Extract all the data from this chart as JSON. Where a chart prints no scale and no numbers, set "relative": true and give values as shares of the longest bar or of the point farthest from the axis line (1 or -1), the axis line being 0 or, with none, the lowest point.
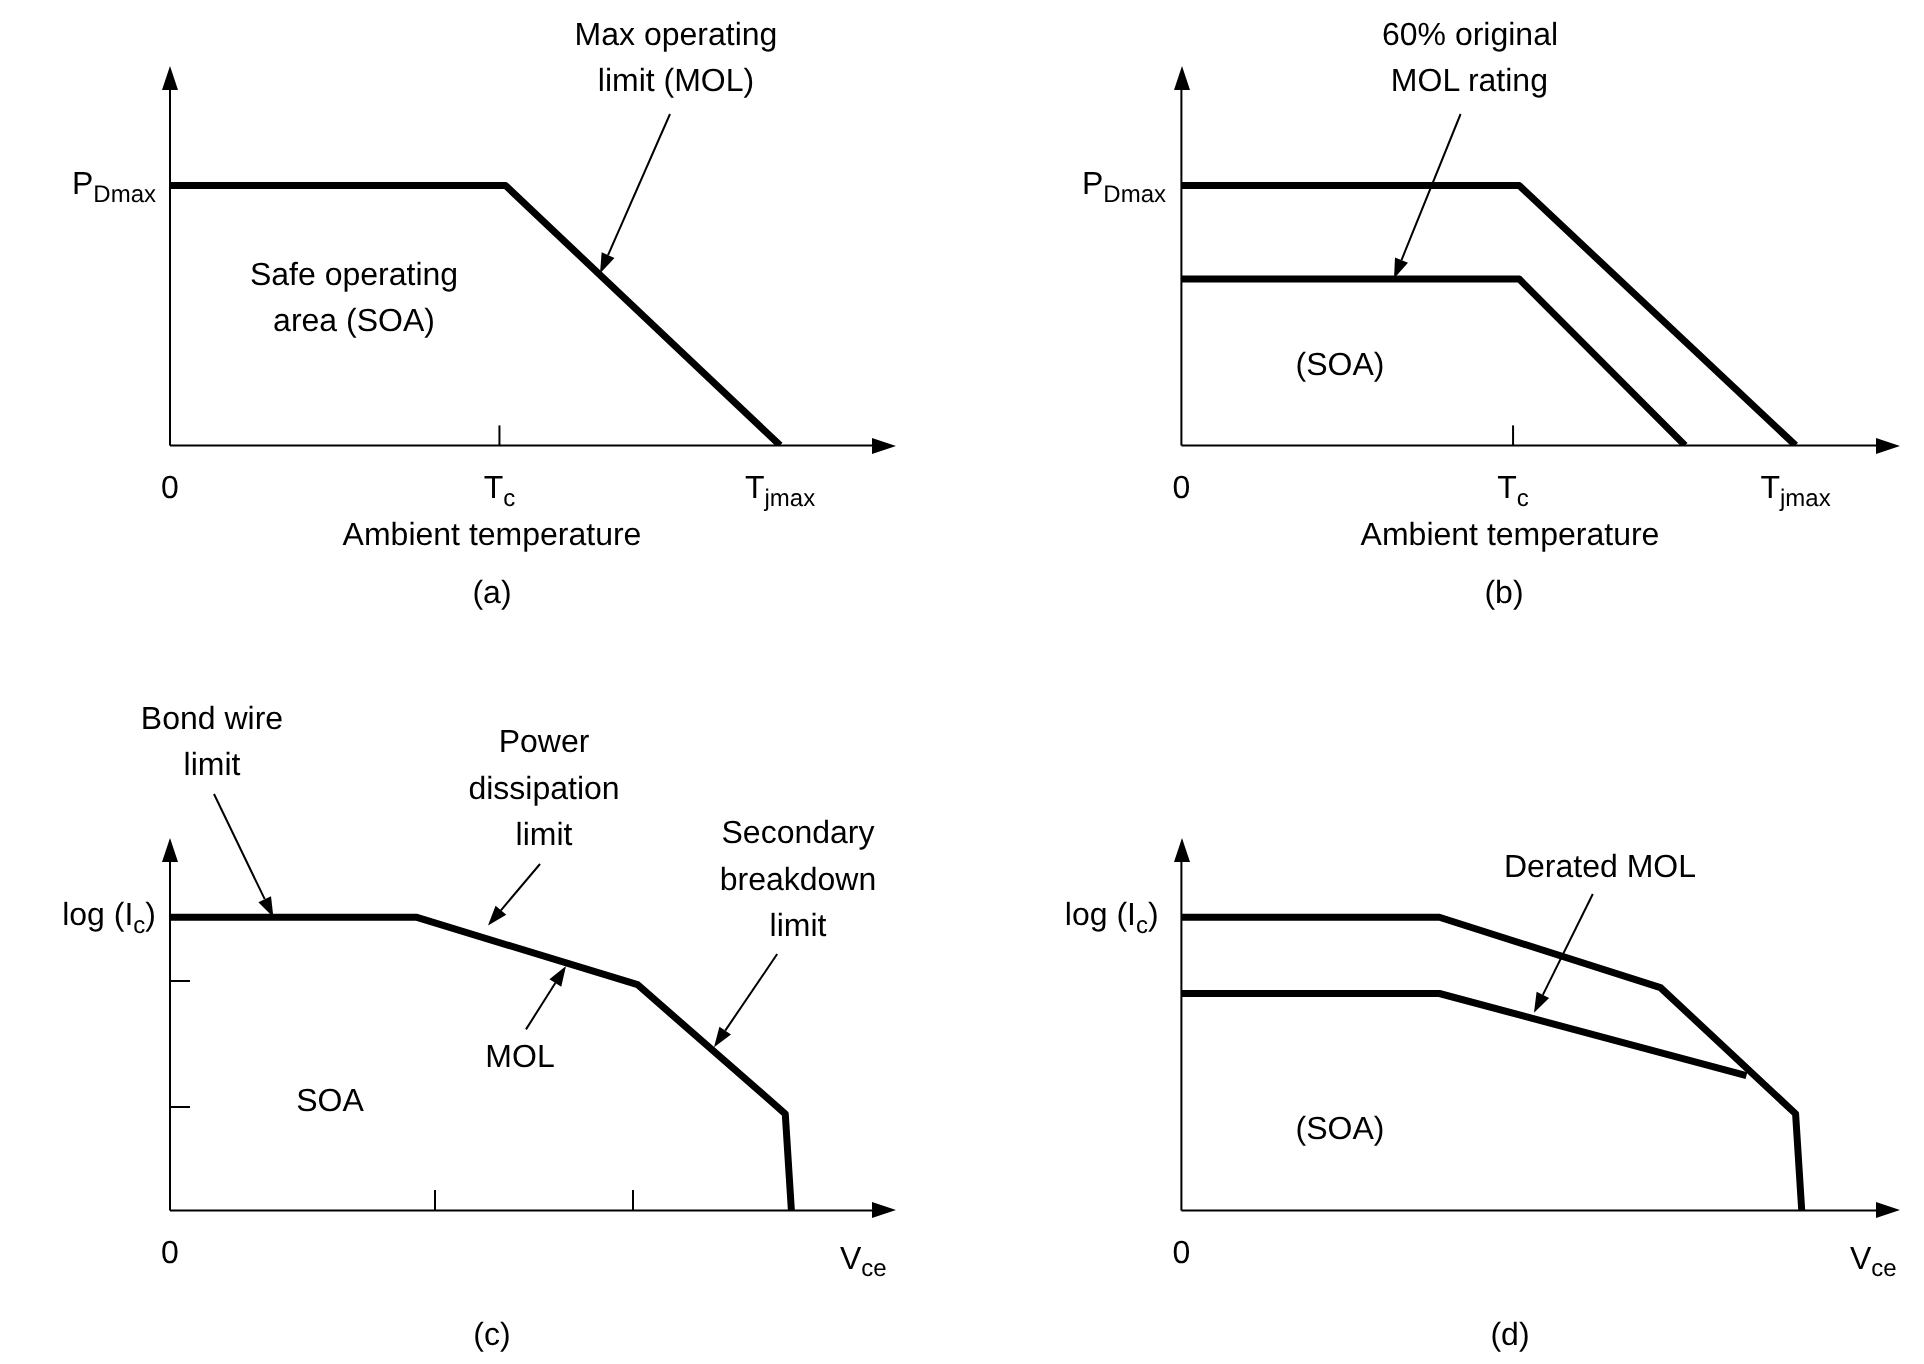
{
  "chart_data": [
    {
      "type": "line",
      "title": "(a)",
      "xlabel": "Ambient temperature",
      "relative": true,
      "marker": "none",
      "categories": [
        "0",
        null,
        null,
        null,
        null,
        null,
        null,
        null,
        null,
        null,
        null,
        null,
        null,
        null,
        null,
        null,
        null,
        null,
        null,
        null,
        null,
        null,
        null,
        null,
        null,
        null,
        null,
        null,
        null,
        null,
        null,
        null,
        null,
        null,
        null,
        null,
        null,
        null,
        null,
        null,
        null,
        null,
        null,
        null,
        null,
        null,
        null,
        null,
        null,
        null,
        null,
        null,
        null,
        null,
        "T$_{c}$",
        null,
        null,
        null,
        null,
        null,
        null,
        null,
        null,
        null,
        null,
        null,
        null,
        null,
        null,
        null,
        null,
        null,
        null,
        null,
        null,
        null,
        null,
        null,
        null,
        null,
        null,
        null,
        null,
        null,
        null,
        null,
        null,
        null,
        null,
        null,
        null,
        null,
        null,
        null,
        null,
        null,
        null,
        null,
        null,
        null,
        "T$_{jmax}$",
        null,
        null,
        null,
        null,
        null,
        null,
        null,
        null,
        null,
        null,
        null,
        null,
        null,
        null,
        null,
        null,
        null,
        null,
        null
      ],
      "series": [
        {
          "color": "#000000",
          "values": [
            1,
            null,
            null,
            null,
            null,
            null,
            null,
            null,
            null,
            null,
            null,
            null,
            null,
            null,
            null,
            null,
            null,
            null,
            null,
            null,
            null,
            null,
            null,
            null,
            null,
            null,
            null,
            null,
            null,
            null,
            null,
            null,
            null,
            null,
            null,
            null,
            null,
            null,
            null,
            null,
            null,
            null,
            null,
            null,
            null,
            null,
            null,
            null,
            null,
            null,
            null,
            null,
            null,
            null,
            null,
            1,
            null,
            null,
            null,
            null,
            null,
            null,
            null,
            null,
            null,
            null,
            null,
            null,
            null,
            null,
            null,
            null,
            null,
            null,
            null,
            null,
            null,
            null,
            null,
            null,
            null,
            null,
            null,
            null,
            null,
            null,
            null,
            null,
            null,
            null,
            null,
            null,
            null,
            null,
            null,
            null,
            null,
            null,
            null,
            null,
            0,
            null,
            null,
            null,
            null,
            null,
            null,
            null,
            null,
            null,
            null,
            null,
            null,
            null,
            null,
            null,
            null,
            null,
            null,
            null
          ]
        }
      ],
      "annotations": [
        "P$_{Dmax}$",
        "Max operating\nlimit (MOL)",
        "Safe operating\narea (SOA)"
      ]
    },
    {
      "type": "line",
      "title": "(b)",
      "xlabel": "Ambient temperature",
      "relative": true,
      "marker": "none",
      "categories": [
        "0",
        null,
        null,
        null,
        null,
        null,
        null,
        null,
        null,
        null,
        null,
        null,
        null,
        null,
        null,
        null,
        null,
        null,
        null,
        null,
        null,
        null,
        null,
        null,
        null,
        null,
        null,
        null,
        null,
        null,
        null,
        null,
        null,
        null,
        null,
        null,
        null,
        null,
        null,
        null,
        null,
        null,
        null,
        null,
        null,
        null,
        null,
        null,
        null,
        null,
        null,
        null,
        null,
        null,
        "T$_{c}$",
        null,
        null,
        null,
        null,
        null,
        null,
        null,
        null,
        null,
        null,
        null,
        null,
        null,
        null,
        null,
        null,
        null,
        null,
        null,
        null,
        null,
        null,
        null,
        null,
        null,
        null,
        null,
        null,
        null,
        null,
        null,
        null,
        null,
        null,
        null,
        null,
        null,
        null,
        null,
        null,
        null,
        null,
        null,
        null,
        null,
        "T$_{jmax}$",
        null,
        null,
        null,
        null,
        null,
        null,
        null,
        null,
        null,
        null,
        null,
        null,
        null,
        null,
        null,
        null,
        null
      ],
      "series": [
        {
          "color": "#000000",
          "values": [
            1,
            null,
            null,
            null,
            null,
            null,
            null,
            null,
            null,
            null,
            null,
            null,
            null,
            null,
            null,
            null,
            null,
            null,
            null,
            null,
            null,
            null,
            null,
            null,
            null,
            null,
            null,
            null,
            null,
            null,
            null,
            null,
            null,
            null,
            null,
            null,
            null,
            null,
            null,
            null,
            null,
            null,
            null,
            null,
            null,
            null,
            null,
            null,
            null,
            null,
            null,
            null,
            null,
            null,
            null,
            1,
            null,
            null,
            null,
            null,
            null,
            null,
            null,
            null,
            null,
            null,
            null,
            null,
            null,
            null,
            null,
            null,
            null,
            null,
            null,
            null,
            null,
            null,
            null,
            null,
            null,
            null,
            null,
            null,
            null,
            null,
            null,
            null,
            null,
            null,
            null,
            null,
            null,
            null,
            null,
            null,
            null,
            null,
            null,
            null,
            0,
            null,
            null,
            null,
            null,
            null,
            null,
            null,
            null,
            null,
            null,
            null,
            null,
            null,
            null,
            null,
            null,
            null
          ]
        },
        {
          "color": "#000000",
          "values": [
            0.64,
            null,
            null,
            null,
            null,
            null,
            null,
            null,
            null,
            null,
            null,
            null,
            null,
            null,
            null,
            null,
            null,
            null,
            null,
            null,
            null,
            null,
            null,
            null,
            null,
            null,
            null,
            null,
            null,
            null,
            null,
            null,
            null,
            null,
            null,
            null,
            null,
            null,
            null,
            null,
            null,
            null,
            null,
            null,
            null,
            null,
            null,
            null,
            null,
            null,
            null,
            null,
            null,
            null,
            null,
            0.64,
            null,
            null,
            null,
            null,
            null,
            null,
            null,
            null,
            null,
            null,
            null,
            null,
            null,
            null,
            null,
            null,
            null,
            null,
            null,
            null,
            null,
            null,
            null,
            null,
            null,
            null,
            0,
            null,
            null,
            null,
            null,
            null,
            null,
            null,
            null,
            null,
            null,
            null,
            null,
            null,
            null,
            null,
            null,
            null,
            null,
            null,
            null,
            null,
            null,
            null,
            null,
            null,
            null,
            null,
            null,
            null,
            null,
            null,
            null,
            null,
            null,
            null
          ]
        }
      ],
      "annotations": [
        "P$_{Dmax}$",
        "60% original\nMOL rating",
        "(SOA)"
      ]
    },
    {
      "type": "line",
      "title": "(c)",
      "xlabel": "V$_{ce}$",
      "ylabel": "log (I$_{c}$)",
      "relative": true,
      "marker": "none",
      "categories": [
        null,
        null,
        null,
        null,
        null,
        null,
        null,
        null,
        null,
        null,
        null,
        null,
        null,
        null,
        null,
        null,
        null,
        null,
        null,
        null,
        null,
        null,
        null,
        null,
        null,
        null,
        null,
        null,
        null,
        null,
        null,
        null,
        null,
        null,
        null,
        null,
        null,
        null,
        null,
        null,
        null,
        null,
        null,
        null,
        null,
        null,
        null,
        null,
        null,
        null,
        null,
        null,
        null,
        null,
        null,
        null,
        null,
        null,
        null,
        null,
        null,
        null,
        null,
        null,
        null,
        null,
        null,
        null,
        null,
        null,
        null,
        null,
        null,
        null,
        null,
        null,
        null,
        null,
        null,
        null,
        null,
        null,
        null,
        null,
        null,
        null,
        null,
        null,
        null,
        null,
        null,
        null,
        null,
        null,
        null,
        null,
        null,
        null,
        null,
        null,
        null,
        null,
        null,
        null,
        null,
        null,
        null,
        null,
        null,
        null,
        null,
        null,
        null,
        null,
        null,
        null,
        null,
        null,
        null
      ],
      "series": [
        {
          "color": "#000000",
          "values": [
            1,
            null,
            null,
            null,
            null,
            null,
            null,
            null,
            null,
            null,
            null,
            null,
            null,
            null,
            null,
            null,
            null,
            null,
            null,
            null,
            null,
            null,
            null,
            null,
            null,
            null,
            null,
            null,
            null,
            null,
            null,
            null,
            null,
            null,
            null,
            null,
            null,
            null,
            null,
            null,
            1,
            null,
            null,
            null,
            null,
            null,
            null,
            null,
            null,
            null,
            null,
            null,
            null,
            null,
            null,
            null,
            null,
            null,
            null,
            null,
            null,
            null,
            null,
            null,
            null,
            null,
            null,
            null,
            null,
            null,
            null,
            null,
            null,
            null,
            null,
            null,
            0.77,
            null,
            null,
            null,
            null,
            null,
            null,
            null,
            null,
            null,
            null,
            null,
            null,
            null,
            null,
            null,
            null,
            null,
            null,
            null,
            null,
            null,
            null,
            null,
            0.33,
            0,
            null,
            null,
            null,
            null,
            null,
            null,
            null,
            null,
            null,
            null,
            null,
            null,
            null,
            null,
            null,
            null,
            null
          ]
        }
      ],
      "annotations": [
        "0",
        "Bond wire\nlimit",
        "Power\ndissipation\nlimit",
        "MOL",
        "Secondary\nbreakdown\nlimit",
        "SOA"
      ]
    },
    {
      "type": "line",
      "title": "(d)",
      "xlabel": "V$_{ce}$",
      "ylabel": "log (I$_{c}$)",
      "relative": true,
      "marker": "none",
      "categories": [
        null,
        null,
        null,
        null,
        null,
        null,
        null,
        null,
        null,
        null,
        null,
        null,
        null,
        null,
        null,
        null,
        null,
        null,
        null,
        null,
        null,
        null,
        null,
        null,
        null,
        null,
        null,
        null,
        null,
        null,
        null,
        null,
        null,
        null,
        null,
        null,
        null,
        null,
        null,
        null,
        null,
        null,
        null,
        null,
        null,
        null,
        null,
        null,
        null,
        null,
        null,
        null,
        null,
        null,
        null,
        null,
        null,
        null,
        null,
        null,
        null,
        null,
        null,
        null,
        null,
        null,
        null,
        null,
        null,
        null,
        null,
        null,
        null,
        null,
        null,
        null,
        null,
        null,
        null,
        null,
        null,
        null,
        null,
        null,
        null,
        null,
        null,
        null,
        null,
        null,
        null,
        null,
        null,
        null,
        null,
        null,
        null,
        null,
        null,
        null,
        null,
        null,
        null,
        null,
        null,
        null,
        null,
        null,
        null,
        null,
        null,
        null,
        null,
        null,
        null,
        null,
        null,
        null
      ],
      "series": [
        {
          "color": "#000000",
          "values": [
            1,
            null,
            null,
            null,
            null,
            null,
            null,
            null,
            null,
            null,
            null,
            null,
            null,
            null,
            null,
            null,
            null,
            null,
            null,
            null,
            null,
            null,
            null,
            null,
            null,
            null,
            null,
            null,
            null,
            null,
            null,
            null,
            null,
            null,
            null,
            null,
            null,
            null,
            null,
            null,
            null,
            null,
            1,
            null,
            null,
            null,
            null,
            null,
            null,
            null,
            null,
            null,
            null,
            null,
            null,
            null,
            null,
            null,
            null,
            null,
            null,
            null,
            null,
            null,
            null,
            null,
            null,
            null,
            null,
            null,
            null,
            null,
            null,
            null,
            null,
            null,
            null,
            null,
            0.76,
            null,
            null,
            null,
            null,
            null,
            null,
            null,
            null,
            null,
            null,
            null,
            null,
            null,
            null,
            null,
            null,
            null,
            null,
            null,
            null,
            null,
            0.33,
            0,
            null,
            null,
            null,
            null,
            null,
            null,
            null,
            null,
            null,
            null,
            null,
            null,
            null,
            null,
            null,
            null
          ]
        },
        {
          "color": "#000000",
          "values": [
            0.74,
            null,
            null,
            null,
            null,
            null,
            null,
            null,
            null,
            null,
            null,
            null,
            null,
            null,
            null,
            null,
            null,
            null,
            null,
            null,
            null,
            null,
            null,
            null,
            null,
            null,
            null,
            null,
            null,
            null,
            null,
            null,
            null,
            null,
            null,
            null,
            null,
            null,
            null,
            null,
            null,
            null,
            0.74,
            null,
            null,
            null,
            null,
            null,
            null,
            null,
            null,
            null,
            null,
            null,
            null,
            null,
            null,
            null,
            null,
            null,
            null,
            null,
            null,
            null,
            null,
            null,
            null,
            null,
            null,
            null,
            null,
            null,
            null,
            null,
            null,
            null,
            null,
            null,
            null,
            null,
            null,
            null,
            null,
            null,
            null,
            null,
            null,
            null,
            null,
            null,
            null,
            null,
            0.46,
            null,
            null,
            null,
            null,
            null,
            null,
            null,
            null,
            null,
            null,
            null,
            null,
            null,
            null,
            null,
            null,
            null,
            null,
            null,
            null,
            null,
            null,
            null,
            null,
            null
          ]
        }
      ],
      "annotations": [
        "0",
        "Derated MOL",
        "(SOA)"
      ]
    }
  ]
}
